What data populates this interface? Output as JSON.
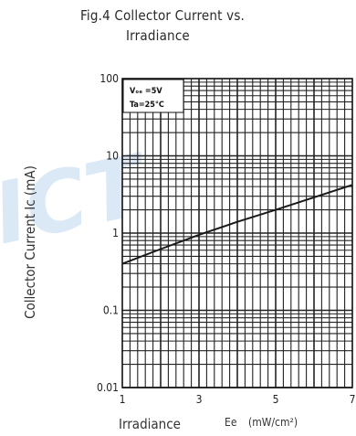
{
  "chart_data": {
    "type": "line",
    "title_line1": "Fig.4  Collector  Current  vs.",
    "title_line2": "Irradiance",
    "xlabel": "Irradiance",
    "xunit_symbol": "Ee",
    "xunit": "(mW/cm²)",
    "ylabel": "Collector  Current  Ic  (mA)",
    "xlim": [
      1,
      7
    ],
    "ylim": [
      0.01,
      100
    ],
    "yscale": "log",
    "xticks": [
      {
        "value": 1,
        "label": "1"
      },
      {
        "value": 3,
        "label": "3"
      },
      {
        "value": 5,
        "label": "5"
      },
      {
        "value": 7,
        "label": "7"
      }
    ],
    "yticks": [
      {
        "value": 100,
        "label": "100"
      },
      {
        "value": 10,
        "label": "10"
      },
      {
        "value": 1,
        "label": "1"
      },
      {
        "value": 0.1,
        "label": "0.1"
      },
      {
        "value": 0.01,
        "label": "0.01"
      }
    ],
    "legend": {
      "position": "top-left",
      "line1": "Vₒₑ =5V",
      "line2": "Ta=25°C"
    },
    "grid": true,
    "series": [
      {
        "x": [
          1,
          2,
          3,
          4,
          5,
          6,
          7
        ],
        "y": [
          0.4,
          0.62,
          0.95,
          1.4,
          2.0,
          2.9,
          4.2
        ]
      }
    ],
    "watermark": "ICT",
    "colors": {
      "line": "#1a1a1a",
      "grid": "#222222",
      "watermark": "#dbe9f7"
    }
  }
}
